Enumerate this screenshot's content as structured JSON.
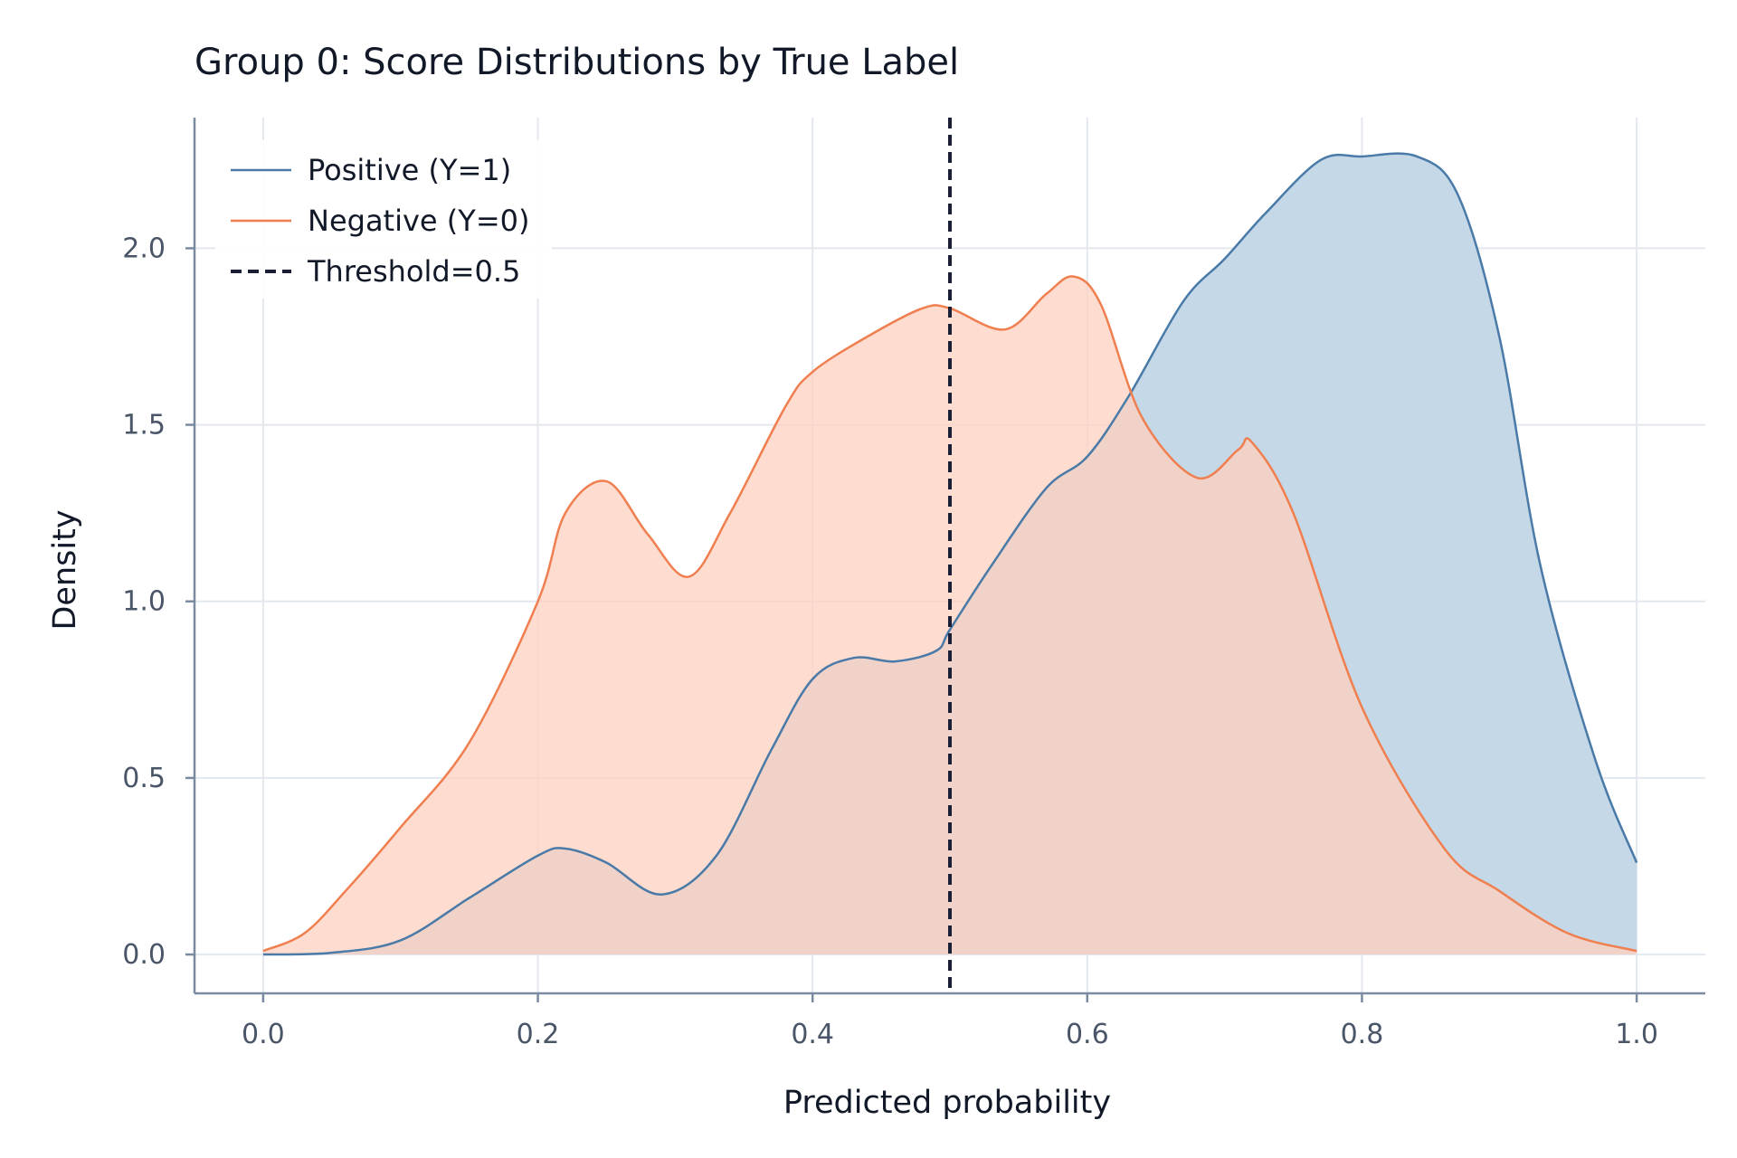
{
  "chart_data": {
    "type": "area",
    "title": "Group 0: Score Distributions by True Label",
    "xlabel": "Predicted probability",
    "ylabel": "Density",
    "xlim": [
      -0.05,
      1.05
    ],
    "ylim": [
      -0.11,
      2.37
    ],
    "x_ticks": [
      0.0,
      0.2,
      0.4,
      0.6,
      0.8,
      1.0
    ],
    "x_tick_labels": [
      "0.0",
      "0.2",
      "0.4",
      "0.6",
      "0.8",
      "1.0"
    ],
    "y_ticks": [
      0.0,
      0.5,
      1.0,
      1.5,
      2.0
    ],
    "y_tick_labels": [
      "0.0",
      "0.5",
      "1.0",
      "1.5",
      "2.0"
    ],
    "grid": true,
    "legend_position": "top-left",
    "series": [
      {
        "name": "Positive (Y=1)",
        "color": "#4a7aa7",
        "fill": "#c5d8e7",
        "x": [
          0.0,
          0.05,
          0.1,
          0.15,
          0.2,
          0.22,
          0.25,
          0.29,
          0.33,
          0.37,
          0.4,
          0.43,
          0.46,
          0.49,
          0.5,
          0.53,
          0.57,
          0.6,
          0.63,
          0.67,
          0.7,
          0.73,
          0.77,
          0.8,
          0.84,
          0.87,
          0.9,
          0.93,
          0.97,
          1.0
        ],
        "values": [
          0.0,
          0.005,
          0.04,
          0.16,
          0.28,
          0.3,
          0.26,
          0.17,
          0.28,
          0.58,
          0.78,
          0.84,
          0.83,
          0.86,
          0.92,
          1.1,
          1.32,
          1.41,
          1.58,
          1.85,
          1.97,
          2.1,
          2.25,
          2.26,
          2.26,
          2.15,
          1.75,
          1.1,
          0.55,
          0.26
        ]
      },
      {
        "name": "Negative (Y=0)",
        "color": "#f07f50",
        "fill": "#fdd0bf",
        "x": [
          0.0,
          0.03,
          0.06,
          0.1,
          0.15,
          0.2,
          0.22,
          0.25,
          0.28,
          0.31,
          0.34,
          0.38,
          0.4,
          0.44,
          0.48,
          0.5,
          0.54,
          0.57,
          0.59,
          0.61,
          0.64,
          0.68,
          0.71,
          0.72,
          0.75,
          0.8,
          0.86,
          0.9,
          0.95,
          1.0
        ],
        "values": [
          0.01,
          0.06,
          0.18,
          0.36,
          0.6,
          1.0,
          1.25,
          1.34,
          1.19,
          1.07,
          1.25,
          1.55,
          1.65,
          1.75,
          1.83,
          1.83,
          1.77,
          1.87,
          1.92,
          1.84,
          1.52,
          1.35,
          1.43,
          1.45,
          1.25,
          0.7,
          0.3,
          0.18,
          0.06,
          0.01
        ]
      }
    ],
    "threshold": {
      "x": 0.5,
      "label": "Threshold=0.5",
      "color": "#1a1f36"
    }
  }
}
